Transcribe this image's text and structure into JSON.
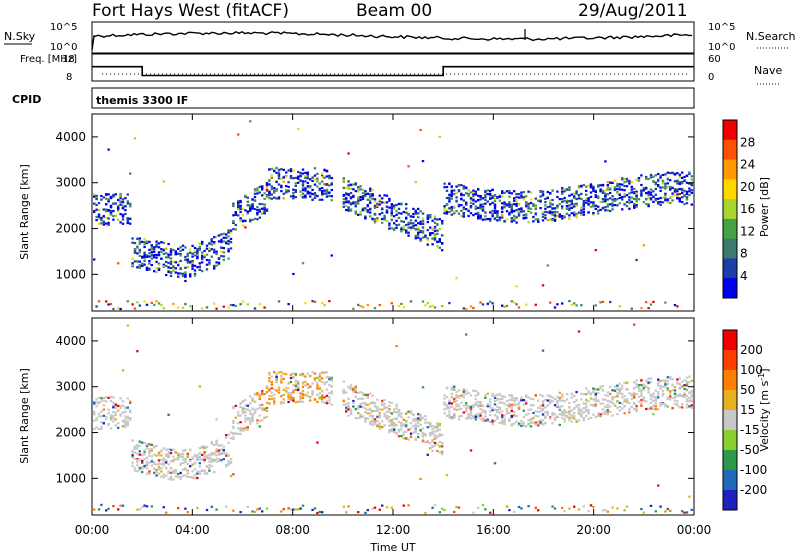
{
  "header": {
    "station": "Fort Hays West (fitACF)",
    "beam": "Beam 00",
    "date": "29/Aug/2011"
  },
  "colors": {
    "power_scale": [
      "#0000ee",
      "#1e3ea8",
      "#3c7a6e",
      "#46a046",
      "#a8d830",
      "#ffd800",
      "#ff9a00",
      "#ff5000",
      "#ee0000"
    ],
    "velocity_scale": [
      "#2020c0",
      "#1e6ab8",
      "#2a9a4a",
      "#8ad030",
      "#c8c8c8",
      "#e8b020",
      "#ff8000",
      "#ff4000",
      "#ee0000"
    ]
  },
  "chart_data": [
    {
      "type": "line",
      "panel": "nsky",
      "left_label": "N.Sky",
      "left_ticks": [
        "10^5",
        "10^0"
      ],
      "right_label": "N.Search",
      "right_ticks": [
        "10^5",
        "10^0"
      ],
      "x": [
        "00:00",
        "04:00",
        "08:00",
        "12:00",
        "16:00",
        "20:00",
        "00:00"
      ]
    },
    {
      "type": "line",
      "panel": "frequency",
      "left_label": "Freq. [MHz]",
      "left_ticks": [
        18,
        8
      ],
      "right_label": "Nave",
      "right_ticks": [
        60,
        0
      ],
      "series": [
        {
          "name": "Freq.",
          "segments": [
            [
              "00:00",
              14.5
            ],
            [
              "02:00",
              10.5
            ],
            [
              "14:00",
              14.5
            ],
            [
              "24:00",
              14.5
            ]
          ]
        }
      ]
    },
    {
      "type": "text",
      "panel": "cpid",
      "label": "CPID",
      "value": "themis 3300 IF"
    },
    {
      "type": "heatmap",
      "panel": "power",
      "ylabel": "Slant Range [km]",
      "xlabel": "Time UT",
      "yticks": [
        1000,
        2000,
        3000,
        4000
      ],
      "ylim": [
        200,
        4500
      ],
      "xticks": [
        "00:00",
        "04:00",
        "08:00",
        "12:00",
        "16:00",
        "20:00",
        "00:00"
      ],
      "colorbar_label": "Power [dB]",
      "colorbar_ticks": [
        "28",
        "24",
        "20",
        "16",
        "12",
        "8",
        "4"
      ]
    },
    {
      "type": "heatmap",
      "panel": "velocity",
      "ylabel": "Slant Range [km]",
      "xlabel": "Time UT",
      "yticks": [
        1000,
        2000,
        3000,
        4000
      ],
      "ylim": [
        200,
        4500
      ],
      "xticks": [
        "00:00",
        "04:00",
        "08:00",
        "12:00",
        "16:00",
        "20:00",
        "00:00"
      ],
      "colorbar_label": "Velocity [m s^-1]",
      "colorbar_ticks": [
        "200",
        "100",
        "50",
        "15",
        "-15",
        "-50",
        "-100",
        "-200"
      ]
    }
  ]
}
